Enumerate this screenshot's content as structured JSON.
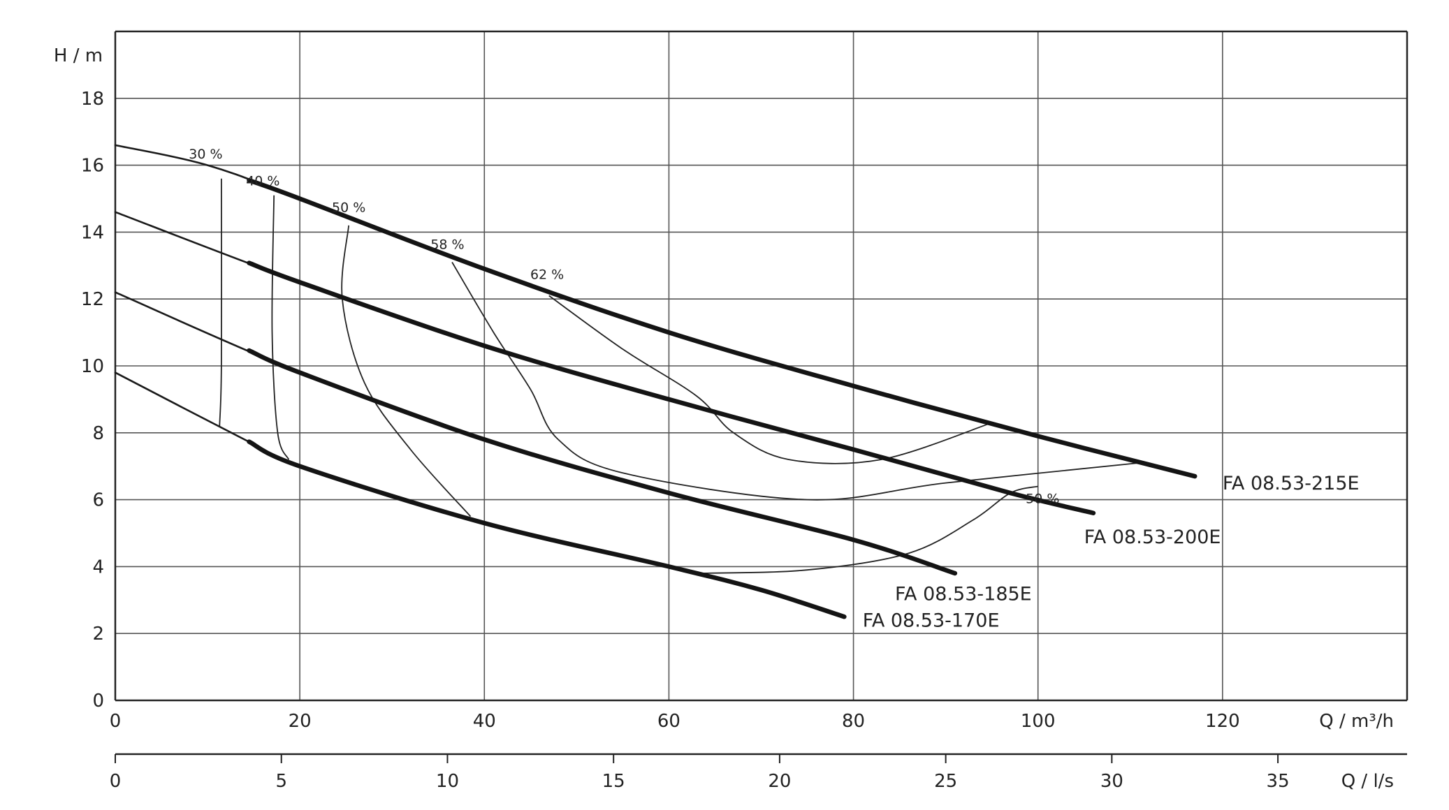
{
  "chart_data": {
    "type": "line",
    "title": "",
    "ylabel": "H / m",
    "xlabel": "Q / m³/h",
    "xlabel2": "Q / l/s",
    "xlim": [
      0,
      140
    ],
    "ylim": [
      0,
      20
    ],
    "grid": true,
    "xticks": [
      0,
      20,
      40,
      60,
      80,
      100,
      120
    ],
    "yticks": [
      0,
      2,
      4,
      6,
      8,
      10,
      12,
      14,
      16,
      18
    ],
    "x2ticks": [
      0,
      5,
      10,
      15,
      20,
      25,
      30,
      35
    ],
    "x2_factor": 3.6,
    "series": [
      {
        "name": "FA 08.53-215E",
        "label_at": [
          120,
          6.3
        ],
        "points": [
          [
            0,
            16.6
          ],
          [
            10,
            16.0
          ],
          [
            20,
            15.0
          ],
          [
            40,
            12.9
          ],
          [
            60,
            11.0
          ],
          [
            80,
            9.4
          ],
          [
            100,
            7.9
          ],
          [
            117,
            6.7
          ]
        ],
        "operating_start": 14.5
      },
      {
        "name": "FA 08.53-200E",
        "label_at": [
          105,
          4.7
        ],
        "points": [
          [
            0,
            14.6
          ],
          [
            20,
            12.5
          ],
          [
            40,
            10.6
          ],
          [
            60,
            9.0
          ],
          [
            80,
            7.5
          ],
          [
            97,
            6.2
          ],
          [
            106,
            5.6
          ]
        ],
        "operating_start": 14.5
      },
      {
        "name": "FA 08.53-185E",
        "label_at": [
          84.5,
          3.0
        ],
        "points": [
          [
            0,
            12.2
          ],
          [
            20,
            9.8
          ],
          [
            40,
            7.8
          ],
          [
            60,
            6.2
          ],
          [
            80,
            4.8
          ],
          [
            91,
            3.8
          ]
        ],
        "operating_start": 14.5
      },
      {
        "name": "FA 08.53-170E",
        "label_at": [
          81,
          2.2
        ],
        "points": [
          [
            0,
            9.8
          ],
          [
            14,
            7.8
          ],
          [
            20,
            7.0
          ],
          [
            40,
            5.3
          ],
          [
            60,
            4.0
          ],
          [
            70,
            3.3
          ],
          [
            79,
            2.5
          ]
        ],
        "operating_start": 14.5
      }
    ],
    "efficiency_curves": [
      {
        "label": "30 %",
        "label_at": [
          9.8,
          16.2
        ],
        "points": [
          [
            11.5,
            15.6
          ],
          [
            11.5,
            10.0
          ],
          [
            11.3,
            8.2
          ]
        ]
      },
      {
        "label": "40 %",
        "label_at": [
          16.0,
          15.4
        ],
        "points": [
          [
            17.2,
            15.1
          ],
          [
            17.0,
            11.0
          ],
          [
            17.6,
            8.0
          ],
          [
            18.8,
            7.2
          ]
        ]
      },
      {
        "label": "50 %",
        "label_at": [
          25.3,
          14.6
        ],
        "points": [
          [
            25.3,
            14.2
          ],
          [
            24.6,
            12.0
          ],
          [
            27.0,
            9.5
          ],
          [
            32.0,
            7.5
          ],
          [
            38.5,
            5.5
          ]
        ]
      },
      {
        "label": "58 %",
        "label_at": [
          36.0,
          13.5
        ],
        "points": [
          [
            36.5,
            13.1
          ],
          [
            41.0,
            11.0
          ],
          [
            45.0,
            9.3
          ],
          [
            48.0,
            7.8
          ],
          [
            55.0,
            6.8
          ],
          [
            75.0,
            6.0
          ],
          [
            90.0,
            6.5
          ],
          [
            111.0,
            7.1
          ]
        ]
      },
      {
        "label": "62 %",
        "label_at": [
          46.8,
          12.6
        ],
        "points": [
          [
            47.0,
            12.1
          ],
          [
            55.0,
            10.5
          ],
          [
            63.0,
            9.1
          ],
          [
            67.0,
            8.0
          ],
          [
            73.0,
            7.2
          ],
          [
            83.0,
            7.2
          ],
          [
            95.0,
            8.3
          ]
        ]
      },
      {
        "label": "50 %",
        "label_at": [
          100.5,
          5.9
        ],
        "points": [
          [
            63.5,
            3.8
          ],
          [
            75.0,
            3.9
          ],
          [
            86.0,
            4.4
          ],
          [
            93.0,
            5.4
          ],
          [
            97.0,
            6.2
          ],
          [
            100.0,
            6.4
          ]
        ]
      }
    ]
  }
}
